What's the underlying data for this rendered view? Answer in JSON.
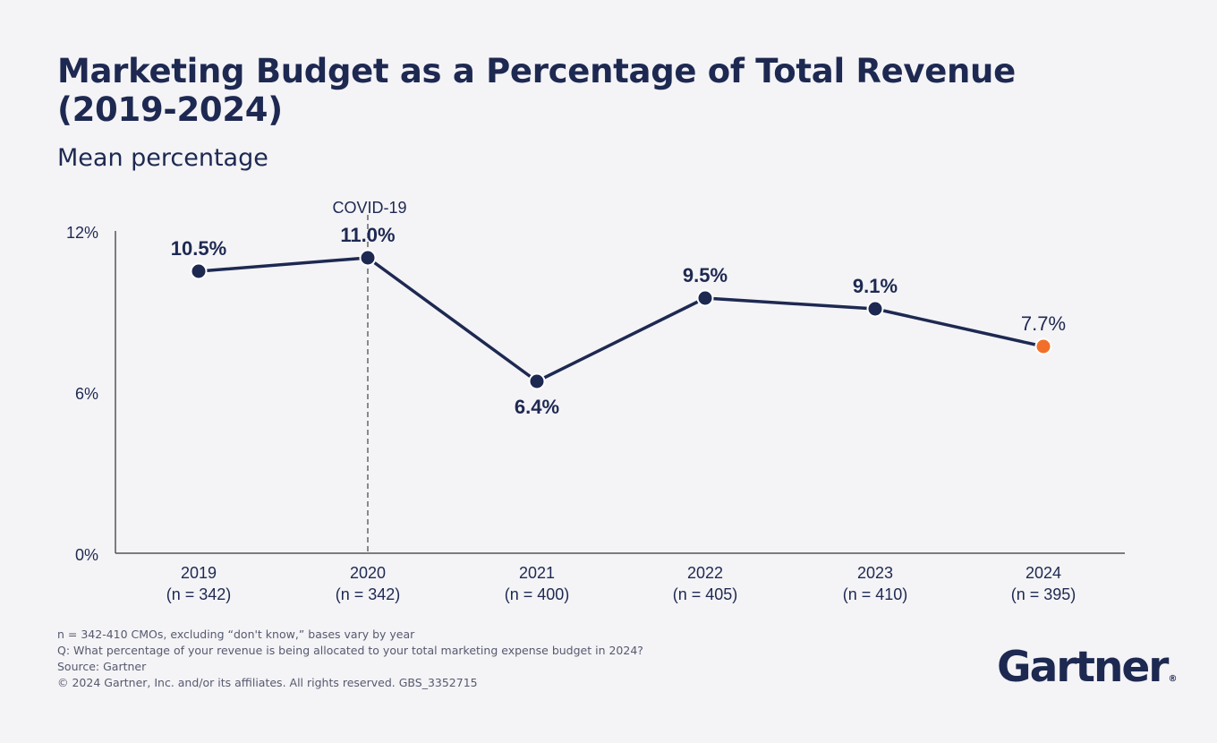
{
  "header": {
    "title": "Marketing Budget as a Percentage of Total Revenue (2019-2024)",
    "subtitle": "Mean percentage"
  },
  "chart_data": {
    "type": "line",
    "title": "Marketing Budget as a Percentage of Total Revenue (2019-2024)",
    "subtitle": "Mean percentage",
    "categories": [
      "2019",
      "2020",
      "2021",
      "2022",
      "2023",
      "2024"
    ],
    "category_sublabels": [
      "(n = 342)",
      "(n = 342)",
      "(n = 400)",
      "(n = 405)",
      "(n = 410)",
      "(n = 395)"
    ],
    "series": [
      {
        "values": [
          10.5,
          11.0,
          6.4,
          9.5,
          9.1,
          7.7
        ],
        "data_labels": [
          "10.5%",
          "11.0%",
          "6.4%",
          "9.5%",
          "9.1%",
          "7.7%"
        ]
      }
    ],
    "ylim": [
      0,
      12
    ],
    "y_ticks": [
      0,
      6,
      12
    ],
    "y_tick_labels": [
      "0%",
      "6%",
      "12%"
    ],
    "annotation": {
      "category": "2020",
      "label": "COVID-19",
      "style": "dashed vertical line"
    },
    "colors": {
      "line": "#1d2951",
      "marker": "#1d2951",
      "highlight": "#f26f2a",
      "axis": "#555555"
    },
    "highlight_index": 5,
    "grid": false,
    "legend": "none"
  },
  "footnotes": [
    "n = 342-410 CMOs, excluding “don't know,” bases vary by year",
    "Q: What percentage of your revenue is being allocated to your total marketing expense budget in 2024?",
    "Source: Gartner",
    "© 2024 Gartner, Inc. and/or its affiliates. All rights reserved. GBS_3352715"
  ],
  "brand": {
    "logo_text": "Gartner",
    "logo_mark": "®"
  }
}
